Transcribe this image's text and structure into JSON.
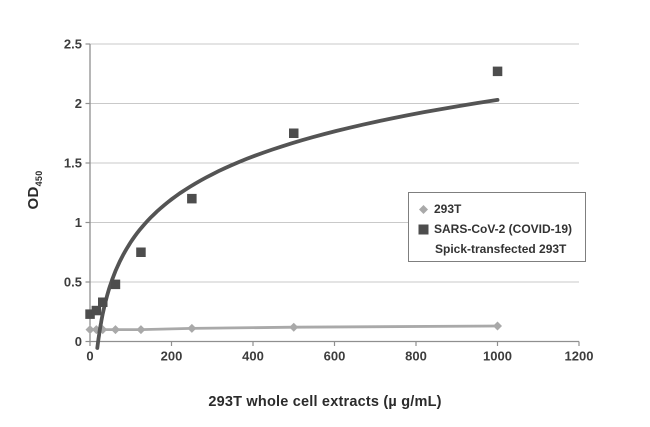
{
  "figure": {
    "background": "#ffffff"
  },
  "chart_data": {
    "type": "scatter",
    "title": "",
    "xlabel": "293T whole cell extracts (µ g/mL)",
    "ylabel": "OD",
    "ylabel_subscript": "450",
    "xlim": [
      0,
      1200
    ],
    "ylim": [
      0,
      2.5
    ],
    "x_ticks": [
      0,
      200,
      400,
      600,
      800,
      1000,
      1200
    ],
    "y_ticks": [
      0,
      0.5,
      1,
      1.5,
      2,
      2.5
    ],
    "grid": "horizontal",
    "x": [
      0,
      15.6,
      31.25,
      62.5,
      125,
      250,
      500,
      1000
    ],
    "series": [
      {
        "name": "293T",
        "marker": "diamond",
        "color": "#a9a9a9",
        "connect_line": true,
        "line_width": 2.8,
        "marker_size": 9,
        "values": [
          0.1,
          0.1,
          0.1,
          0.1,
          0.1,
          0.11,
          0.12,
          0.13
        ]
      },
      {
        "name": "SARS-CoV-2 (COVID-19) Spick-transfected 293T",
        "marker": "square",
        "color": "#4d4d4d",
        "connect_line": false,
        "marker_size": 9.5,
        "values": [
          0.23,
          0.26,
          0.33,
          0.48,
          0.75,
          1.2,
          1.75,
          2.27
        ]
      }
    ],
    "trendline": {
      "applies_to": "SARS-CoV-2 (COVID-19) Spick-transfected 293T",
      "type": "logarithmic",
      "equation": "y = 0.519*ln(x) - 1.555",
      "a": 0.519,
      "b": -1.555,
      "x_start": 18,
      "x_end": 1000,
      "color": "#545454",
      "width": 3.8
    },
    "legend": {
      "position": "right-middle",
      "entries": [
        {
          "label": "293T",
          "marker": "diamond",
          "color": "#a9a9a9"
        },
        {
          "label": "SARS-CoV-2 (COVID-19)",
          "label_line2": "Spick-transfected 293T",
          "marker": "square",
          "color": "#4d4d4d"
        }
      ]
    }
  },
  "colors": {
    "grid": "#c9c9c9",
    "axis": "#8f8f8f",
    "tick_label": "#3d3d3d",
    "axis_title": "#2b2b2b"
  }
}
